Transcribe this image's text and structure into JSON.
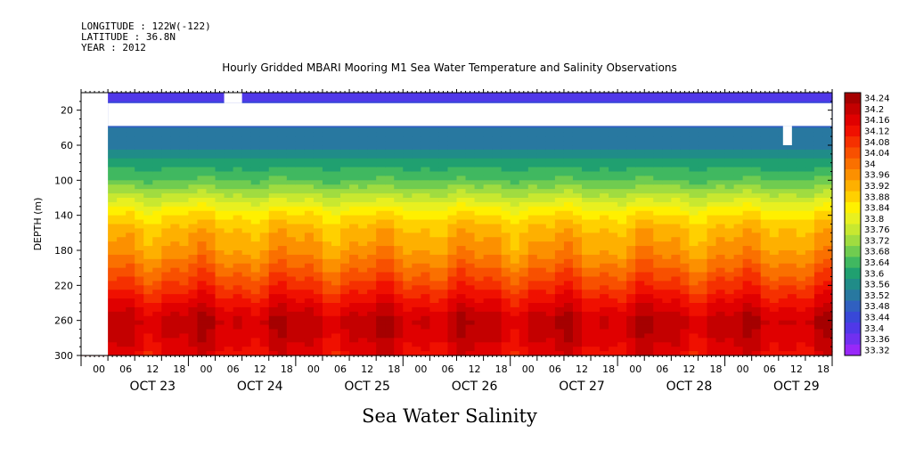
{
  "header": {
    "longitude": "LONGITUDE : 122W(-122)",
    "latitude": "LATITUDE : 36.8N",
    "year": "YEAR : 2012"
  },
  "chart_data": {
    "type": "heatmap",
    "title": "Hourly Gridded MBARI Mooring M1 Sea Water Temperature and Salinity Observations",
    "xlabel": "Sea Water Salinity",
    "ylabel": "DEPTH (m)",
    "x_range_hours": [
      0,
      168
    ],
    "y_range_depth_m": [
      0,
      300
    ],
    "y_inverted": true,
    "y_ticks": [
      20,
      60,
      100,
      140,
      180,
      220,
      260,
      300
    ],
    "x_hour_tick_labels": [
      "00",
      "06",
      "12",
      "18",
      "00",
      "06",
      "12",
      "18",
      "00",
      "06",
      "12",
      "18",
      "00",
      "06",
      "12",
      "18",
      "00",
      "06",
      "12",
      "18",
      "00",
      "06",
      "12",
      "18",
      "00",
      "06",
      "12",
      "18"
    ],
    "x_date_labels": [
      "OCT 23",
      "OCT 24",
      "OCT 25",
      "OCT 26",
      "OCT 27",
      "OCT 28",
      "OCT 29"
    ],
    "colorbar_levels": [
      "34.24",
      "34.2",
      "34.16",
      "34.12",
      "34.08",
      "34.04",
      "34",
      "33.96",
      "33.92",
      "33.88",
      "33.84",
      "33.8",
      "33.76",
      "33.72",
      "33.68",
      "33.64",
      "33.6",
      "33.56",
      "33.52",
      "33.48",
      "33.44",
      "33.4",
      "33.36",
      "33.32"
    ],
    "colorbar_colors": [
      "#a50000",
      "#c40000",
      "#e00000",
      "#f01000",
      "#f53000",
      "#f85000",
      "#fa7000",
      "#fc9000",
      "#feb000",
      "#ffd000",
      "#fff000",
      "#e8f020",
      "#c8e830",
      "#a0dc40",
      "#70cc50",
      "#40b860",
      "#20a070",
      "#208c88",
      "#2878a0",
      "#3060c0",
      "#3848d8",
      "#5038e8",
      "#7030f0",
      "#9828f8"
    ],
    "depth_profile": [
      {
        "depth": 10,
        "value": 33.44
      },
      {
        "depth": 40,
        "value": 33.52
      },
      {
        "depth": 60,
        "value": 33.55
      },
      {
        "depth": 80,
        "value": 33.62
      },
      {
        "depth": 100,
        "value": 33.68
      },
      {
        "depth": 120,
        "value": 33.78
      },
      {
        "depth": 140,
        "value": 33.88
      },
      {
        "depth": 160,
        "value": 33.94
      },
      {
        "depth": 180,
        "value": 33.97
      },
      {
        "depth": 200,
        "value": 34.03
      },
      {
        "depth": 220,
        "value": 34.09
      },
      {
        "depth": 240,
        "value": 34.16
      },
      {
        "depth": 260,
        "value": 34.22
      },
      {
        "depth": 280,
        "value": 34.2
      },
      {
        "depth": 300,
        "value": 34.16
      }
    ],
    "data_gaps": [
      {
        "hour_start": 0,
        "hour_end": 6,
        "depth_start": 0,
        "depth_end": 300
      },
      {
        "hour_start": 6,
        "hour_end": 168,
        "depth_start": 12,
        "depth_end": 38
      },
      {
        "hour_start": 32,
        "hour_end": 36,
        "depth_start": 0,
        "depth_end": 12
      },
      {
        "hour_start": 157,
        "hour_end": 159,
        "depth_start": 38,
        "depth_end": 60
      }
    ]
  }
}
